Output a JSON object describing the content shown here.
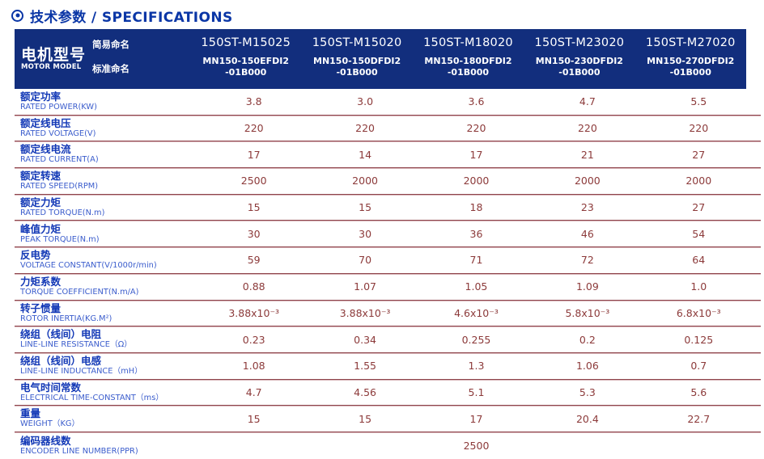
{
  "page": {
    "title": "技术参数 / SPECIFICATIONS",
    "title_icon": "circle-dot"
  },
  "colors": {
    "accent_blue": "#0a36a6",
    "header_navy": "#122e7d",
    "label_blue_cn": "#1238b6",
    "label_blue_en": "#3a5ccc",
    "value_maroon": "#8c3a3a",
    "divider_dark": "#8e434b",
    "divider_light": "#d8b6ba"
  },
  "table": {
    "header": {
      "row_label_cn": "电机型号",
      "row_label_en": "MOTOR MODEL",
      "sub_label_simple": "简易命名",
      "sub_label_standard": "标准命名",
      "columns": [
        {
          "simple_name": "150ST-M15025",
          "standard_name": "MN150-150EFDI2\n-01B000"
        },
        {
          "simple_name": "150ST-M15020",
          "standard_name": "MN150-150DFDI2\n-01B000"
        },
        {
          "simple_name": "150ST-M18020",
          "standard_name": "MN150-180DFDI2\n-01B000"
        },
        {
          "simple_name": "150ST-M23020",
          "standard_name": "MN150-230DFDI2\n-01B000"
        },
        {
          "simple_name": "150ST-M27020",
          "standard_name": "MN150-270DFDI2\n-01B000"
        }
      ]
    },
    "rows": [
      {
        "label_cn": "额定功率",
        "label_en": "RATED POWER(KW)",
        "values": [
          "3.8",
          "3.0",
          "3.6",
          "4.7",
          "5.5"
        ]
      },
      {
        "label_cn": "额定线电压",
        "label_en": "RATED VOLTAGE(V)",
        "values": [
          "220",
          "220",
          "220",
          "220",
          "220"
        ]
      },
      {
        "label_cn": "额定线电流",
        "label_en": "RATED CURRENT(A)",
        "values": [
          "17",
          "14",
          "17",
          "21",
          "27"
        ]
      },
      {
        "label_cn": "额定转速",
        "label_en": "RATED SPEED(RPM)",
        "values": [
          "2500",
          "2000",
          "2000",
          "2000",
          "2000"
        ]
      },
      {
        "label_cn": "额定力矩",
        "label_en": "RATED TORQUE(N.m)",
        "values": [
          "15",
          "15",
          "18",
          "23",
          "27"
        ]
      },
      {
        "label_cn": "峰值力矩",
        "label_en": "PEAK TORQUE(N.m)",
        "values": [
          "30",
          "30",
          "36",
          "46",
          "54"
        ]
      },
      {
        "label_cn": "反电势",
        "label_en": "VOLTAGE CONSTANT(V/1000r/min)",
        "values": [
          "59",
          "70",
          "71",
          "72",
          "64"
        ]
      },
      {
        "label_cn": "力矩系数",
        "label_en": "TORQUE COEFFICIENT(N.m/A)",
        "values": [
          "0.88",
          "1.07",
          "1.05",
          "1.09",
          "1.0"
        ]
      },
      {
        "label_cn": "转子惯量",
        "label_en": "ROTOR INERTIA(KG.M²)",
        "values": [
          "3.88x10⁻³",
          "3.88x10⁻³",
          "4.6x10⁻³",
          "5.8x10⁻³",
          "6.8x10⁻³"
        ]
      },
      {
        "label_cn": "绕组（线间）电阻",
        "label_en": "LINE-LINE RESISTANCE（Ω）",
        "values": [
          "0.23",
          "0.34",
          "0.255",
          "0.2",
          "0.125"
        ]
      },
      {
        "label_cn": "绕组（线间）电感",
        "label_en": "LINE-LINE INDUCTANCE（mH）",
        "values": [
          "1.08",
          "1.55",
          "1.3",
          "1.06",
          "0.7"
        ]
      },
      {
        "label_cn": "电气时间常数",
        "label_en": "ELECTRICAL TIME-CONSTANT（ms）",
        "values": [
          "4.7",
          "4.56",
          "5.1",
          "5.3",
          "5.6"
        ]
      },
      {
        "label_cn": "重量",
        "label_en": "WEIGHT（KG）",
        "values": [
          "15",
          "15",
          "17",
          "20.4",
          "22.7"
        ]
      },
      {
        "label_cn": "编码器线数",
        "label_en": "ENCODER LINE NUMBER(PPR)",
        "values": [
          "2500"
        ],
        "span_all": true
      }
    ]
  }
}
